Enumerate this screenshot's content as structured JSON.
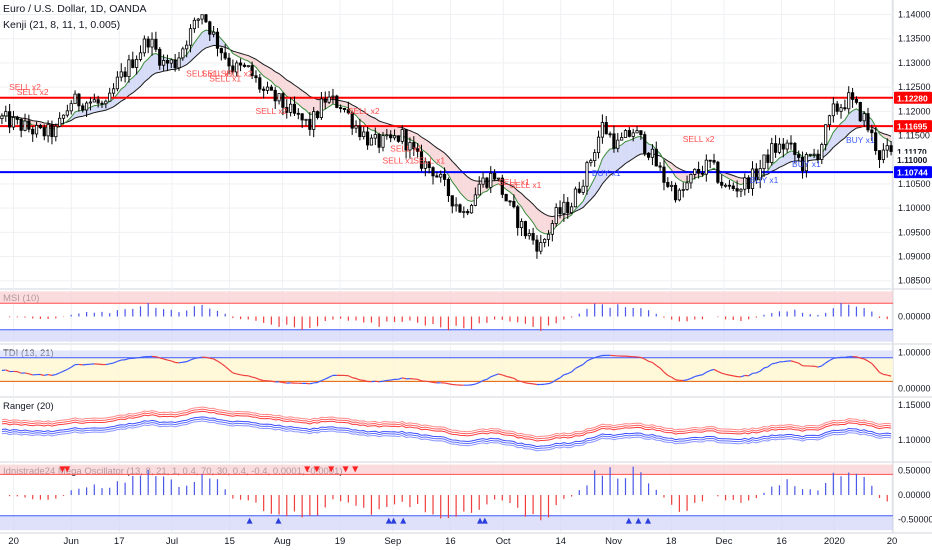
{
  "header": {
    "symbol_line": "Euro / U.S. Dollar, 1D, OANDA",
    "indicator_line": "Kenji (21, 8, 11, 1, 0.005)"
  },
  "colors": {
    "up": "#ffffff",
    "down": "#000000",
    "resistance": "#ff0000",
    "support": "#0000ff",
    "sell_text": "#ff4d4d",
    "buy_text": "#3d5afe",
    "grid": "#eef0f3",
    "band_red": "#f8cdd0",
    "band_blue": "#d0d4f7",
    "band_yellow": "#fff8d6",
    "osc_up": "#4a57e8",
    "osc_down": "#ef3e3e"
  },
  "price_axis": {
    "ticks": [
      "1.14000",
      "1.13500",
      "1.13000",
      "1.12500",
      "1.12000",
      "1.11500",
      "1.11000",
      "1.10500",
      "1.10000",
      "1.09500",
      "1.09000",
      "1.08500"
    ],
    "tick_values": [
      1.14,
      1.135,
      1.13,
      1.125,
      1.12,
      1.115,
      1.11,
      1.105,
      1.1,
      1.095,
      1.09,
      1.085
    ],
    "ylim": [
      1.0835,
      1.143
    ],
    "badges": [
      {
        "text": "1.12280",
        "value": 1.1228,
        "color": "#ff0000"
      },
      {
        "text": "1.11695",
        "value": 1.11695,
        "color": "#ff0000"
      },
      {
        "text": "1.11170",
        "value": 1.1117,
        "color": "#ffffff"
      },
      {
        "text": "1.11000",
        "value": 1.11,
        "color": "#ffffff"
      },
      {
        "text": "1.10744",
        "value": 1.10744,
        "color": "#0000ff"
      }
    ]
  },
  "time_axis": {
    "labels": [
      "20",
      "Jun",
      "17",
      "Jul",
      "15",
      "Aug",
      "19",
      "Sep",
      "16",
      "Oct",
      "14",
      "Nov",
      "18",
      "Dec",
      "16",
      "2020",
      "20"
    ]
  },
  "levels": [
    {
      "name": "resistance-1",
      "value": 1.1228
    },
    {
      "name": "resistance-2",
      "value": 1.11695
    },
    {
      "name": "support",
      "value": 1.10744
    }
  ],
  "signals": {
    "sell": [
      {
        "text": "SELL x2",
        "i": 6,
        "y": 1.1244
      },
      {
        "text": "SELL x2",
        "i": 8,
        "y": 1.1234
      },
      {
        "text": "SELL x1",
        "i": 52,
        "y": 1.1272
      },
      {
        "text": "SELL x1",
        "i": 56,
        "y": 1.1272
      },
      {
        "text": "SELL x2",
        "i": 61,
        "y": 1.1272
      },
      {
        "text": "SELL x1",
        "i": 58,
        "y": 1.1262
      },
      {
        "text": "SELL x2",
        "i": 70,
        "y": 1.1194
      },
      {
        "text": "SELL x2",
        "i": 94,
        "y": 1.1194
      },
      {
        "text": "SELL x1",
        "i": 105,
        "y": 1.1117
      },
      {
        "text": "SELL x1",
        "i": 103,
        "y": 1.1092
      },
      {
        "text": "SELL x1",
        "i": 111,
        "y": 1.1092
      },
      {
        "text": "SELL x1",
        "i": 133,
        "y": 1.1048
      },
      {
        "text": "SELL x1",
        "i": 136,
        "y": 1.1042
      },
      {
        "text": "SELL x2",
        "i": 181,
        "y": 1.1137
      }
    ],
    "buy": [
      {
        "text": "BUY x1",
        "i": 157,
        "y": 1.1066
      },
      {
        "text": "BUY x1",
        "i": 198,
        "y": 1.1052
      },
      {
        "text": "BUY x1",
        "i": 209,
        "y": 1.1085
      },
      {
        "text": "BUY x1",
        "i": 223,
        "y": 1.1135
      }
    ]
  },
  "panes": [
    {
      "title": "MSI (10)",
      "ticks": [
        "0.00000"
      ],
      "tick_values": [
        0
      ],
      "ylim": [
        -0.6,
        0.6
      ],
      "kind": "msi"
    },
    {
      "title": "TDI (13, 21)",
      "ticks": [
        "1.00000",
        "0.00000"
      ],
      "tick_values": [
        1,
        0
      ],
      "ylim": [
        -0.2,
        1.2
      ],
      "kind": "tdi"
    },
    {
      "title": "Ranger (20)",
      "ticks": [
        "1.15000",
        "1.10000"
      ],
      "tick_values": [
        1.15,
        1.1
      ],
      "ylim": [
        1.07,
        1.16
      ],
      "kind": "ranger"
    },
    {
      "title": "Idnistrade24 Mega Oscillator (13, 8, 21, 1, 0.4, 70, 30, 0.4, -0.4, 0.0001, -0.0001)",
      "ticks": [
        "0.50000",
        "0.00000",
        "-0.50000"
      ],
      "tick_values": [
        0.5,
        0,
        -0.5
      ],
      "ylim": [
        -0.75,
        0.65
      ],
      "kind": "mega"
    }
  ],
  "chart_data": {
    "type": "candlestick",
    "series_count": 232,
    "title": "Euro / U.S. Dollar, 1D, OANDA",
    "path": [
      [
        0,
        1.1185
      ],
      [
        10,
        1.1155
      ],
      [
        14,
        1.1158
      ],
      [
        18,
        1.122
      ],
      [
        24,
        1.122
      ],
      [
        27,
        1.1205
      ],
      [
        30,
        1.126
      ],
      [
        34,
        1.1305
      ],
      [
        38,
        1.135
      ],
      [
        42,
        1.13
      ],
      [
        45,
        1.13
      ],
      [
        48,
        1.135
      ],
      [
        52,
        1.1405
      ],
      [
        56,
        1.134
      ],
      [
        60,
        1.129
      ],
      [
        64,
        1.1285
      ],
      [
        68,
        1.124
      ],
      [
        72,
        1.122
      ],
      [
        76,
        1.119
      ],
      [
        80,
        1.117
      ],
      [
        84,
        1.1225
      ],
      [
        88,
        1.1215
      ],
      [
        92,
        1.117
      ],
      [
        96,
        1.1135
      ],
      [
        100,
        1.1135
      ],
      [
        104,
        1.115
      ],
      [
        108,
        1.11
      ],
      [
        112,
        1.108
      ],
      [
        116,
        1.103
      ],
      [
        120,
        1.099
      ],
      [
        124,
        1.105
      ],
      [
        128,
        1.107
      ],
      [
        132,
        1.1
      ],
      [
        136,
        1.095
      ],
      [
        140,
        1.092
      ],
      [
        144,
        1.0985
      ],
      [
        148,
        1.101
      ],
      [
        152,
        1.108
      ],
      [
        156,
        1.117
      ],
      [
        160,
        1.113
      ],
      [
        164,
        1.116
      ],
      [
        168,
        1.112
      ],
      [
        172,
        1.106
      ],
      [
        176,
        1.1025
      ],
      [
        180,
        1.107
      ],
      [
        184,
        1.109
      ],
      [
        188,
        1.104
      ],
      [
        192,
        1.1045
      ],
      [
        196,
        1.107
      ],
      [
        200,
        1.112
      ],
      [
        204,
        1.113
      ],
      [
        208,
        1.109
      ],
      [
        212,
        1.1115
      ],
      [
        216,
        1.12
      ],
      [
        220,
        1.1225
      ],
      [
        224,
        1.1185
      ],
      [
        228,
        1.111
      ],
      [
        231,
        1.1117
      ]
    ]
  }
}
